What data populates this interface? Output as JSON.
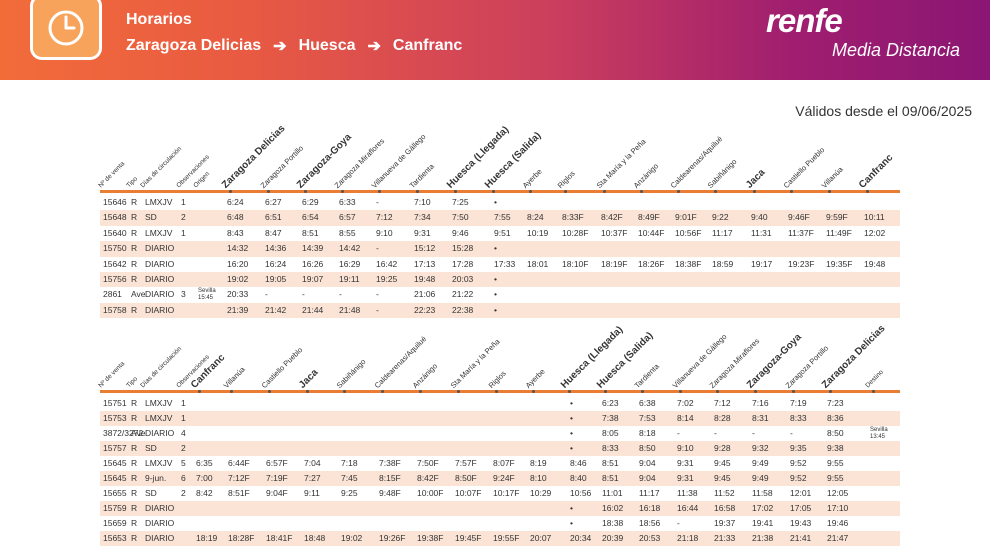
{
  "header": {
    "title": "Horarios",
    "route": [
      "Zaragoza Delicias",
      "Huesca",
      "Canfranc"
    ],
    "brand": "renfe",
    "brand_sub": "Media Distancia",
    "valid_from": "Válidos desde el 09/06/2025"
  },
  "colors": {
    "orange": "#e87d33",
    "shaded": "#fbe4d6",
    "accent": "#f7a35b"
  },
  "icons": {
    "clock": "clock-icon",
    "arrow": "arrow-right-icon"
  },
  "table1": {
    "columns": [
      "Nº de venta",
      "Tipo",
      "Días de circulación",
      "Observaciones",
      "Origen",
      "Zaragoza Delicias",
      "Zaragoza Portillo",
      "Zaragoza-Goya",
      "Zaragoza Miraflores",
      "Villanueva de Gállego",
      "Tardienta",
      "Huesca (Llegada)",
      "Huesca (Salida)",
      "Ayerbe",
      "Riglos",
      "Sta María y la Peña",
      "Anzánigo",
      "Caldearenas/Aquilué",
      "Sabiñánigo",
      "Jaca",
      "Castiello Pueblo",
      "Villanúa",
      "Canfranc"
    ],
    "rows": [
      [
        "15646",
        "R",
        "LMXJV",
        "1",
        "",
        "6:24",
        "6:27",
        "6:29",
        "6:33",
        "-",
        "7:10",
        "7:25",
        "•",
        "",
        "",
        "",
        "",
        "",
        "",
        "",
        "",
        "",
        ""
      ],
      [
        "15648",
        "R",
        "SD",
        "2",
        "",
        "6:48",
        "6:51",
        "6:54",
        "6:57",
        "7:12",
        "7:34",
        "7:50",
        "7:55",
        "8:24",
        "8:33F",
        "8:42F",
        "8:49F",
        "9:01F",
        "9:22",
        "9:40",
        "9:46F",
        "9:59F",
        "10:11"
      ],
      [
        "15640",
        "R",
        "LMXJV",
        "1",
        "",
        "8:43",
        "8:47",
        "8:51",
        "8:55",
        "9:10",
        "9:31",
        "9:46",
        "9:51",
        "10:19",
        "10:28F",
        "10:37F",
        "10:44F",
        "10:56F",
        "11:17",
        "11:31",
        "11:37F",
        "11:49F",
        "12:02"
      ],
      [
        "15750",
        "R",
        "DIARIO",
        "",
        "",
        "14:32",
        "14:36",
        "14:39",
        "14:42",
        "-",
        "15:12",
        "15:28",
        "•",
        "",
        "",
        "",
        "",
        "",
        "",
        "",
        "",
        "",
        ""
      ],
      [
        "15642",
        "R",
        "DIARIO",
        "",
        "",
        "16:20",
        "16:24",
        "16:26",
        "16:29",
        "16:42",
        "17:13",
        "17:28",
        "17:33",
        "18:01",
        "18:10F",
        "18:19F",
        "18:26F",
        "18:38F",
        "18:59",
        "19:17",
        "19:23F",
        "19:35F",
        "19:48"
      ],
      [
        "15756",
        "R",
        "DIARIO",
        "",
        "",
        "19:02",
        "19:05",
        "19:07",
        "19:11",
        "19:25",
        "19:48",
        "20:03",
        "•",
        "",
        "",
        "",
        "",
        "",
        "",
        "",
        "",
        "",
        ""
      ],
      [
        "2861",
        "Ave",
        "DIARIO",
        "3",
        "Sevilla 15:45",
        "20:33",
        "-",
        "-",
        "-",
        "-",
        "21:06",
        "21:22",
        "•",
        "",
        "",
        "",
        "",
        "",
        "",
        "",
        "",
        "",
        ""
      ],
      [
        "15758",
        "R",
        "DIARIO",
        "",
        "",
        "21:39",
        "21:42",
        "21:44",
        "21:48",
        "-",
        "22:23",
        "22:38",
        "•",
        "",
        "",
        "",
        "",
        "",
        "",
        "",
        "",
        "",
        ""
      ]
    ]
  },
  "table2": {
    "columns": [
      "Nº de venta",
      "Tipo",
      "Días de circulación",
      "Observaciones",
      "Canfranc",
      "Villanúa",
      "Castiello Pueblo",
      "Jaca",
      "Sabiñánigo",
      "Caldearenas/Aquilué",
      "Anzánigo",
      "Sta María y la Peña",
      "Riglos",
      "Ayerbe",
      "Huesca (Llegada)",
      "Huesca (Salida)",
      "Tardienta",
      "Villanueva de Gállego",
      "Zaragoza Miraflores",
      "Zaragoza-Goya",
      "Zaragoza Portillo",
      "Zaragoza Delicias",
      "Destino"
    ],
    "rows": [
      [
        "15751",
        "R",
        "LMXJV",
        "1",
        "",
        "",
        "",
        "",
        "",
        "",
        "",
        "",
        "",
        "",
        "•",
        "6:23",
        "6:38",
        "7:02",
        "7:12",
        "7:16",
        "7:19",
        "7:23",
        ""
      ],
      [
        "15753",
        "R",
        "LMXJV",
        "1",
        "",
        "",
        "",
        "",
        "",
        "",
        "",
        "",
        "",
        "",
        "•",
        "7:38",
        "7:53",
        "8:14",
        "8:28",
        "8:31",
        "8:33",
        "8:36",
        ""
      ],
      [
        "3872/3272",
        "Ave",
        "DIARIO",
        "4",
        "",
        "",
        "",
        "",
        "",
        "",
        "",
        "",
        "",
        "",
        "•",
        "8:05",
        "8:18",
        "-",
        "-",
        "-",
        "-",
        "8:50",
        "Sevilla 13:45"
      ],
      [
        "15757",
        "R",
        "SD",
        "2",
        "",
        "",
        "",
        "",
        "",
        "",
        "",
        "",
        "",
        "",
        "•",
        "8:33",
        "8:50",
        "9:10",
        "9:28",
        "9:32",
        "9:35",
        "9:38",
        ""
      ],
      [
        "15645",
        "R",
        "LMXJV",
        "5",
        "6:35",
        "6:44F",
        "6:57F",
        "7:04",
        "7:18",
        "7:38F",
        "7:50F",
        "7:57F",
        "8:07F",
        "8:19",
        "8:46",
        "8:51",
        "9:04",
        "9:31",
        "9:45",
        "9:49",
        "9:52",
        "9:55",
        ""
      ],
      [
        "15645",
        "R",
        "9-jun.",
        "6",
        "7:00",
        "7:12F",
        "7:19F",
        "7:27",
        "7:45",
        "8:15F",
        "8:42F",
        "8:50F",
        "9:24F",
        "8:10",
        "8:40",
        "8:51",
        "9:04",
        "9:31",
        "9:45",
        "9:49",
        "9:52",
        "9:55",
        ""
      ],
      [
        "15655",
        "R",
        "SD",
        "2",
        "8:42",
        "8:51F",
        "9:04F",
        "9:11",
        "9:25",
        "9:48F",
        "10:00F",
        "10:07F",
        "10:17F",
        "10:29",
        "10:56",
        "11:01",
        "11:17",
        "11:38",
        "11:52",
        "11:58",
        "12:01",
        "12:05",
        ""
      ],
      [
        "15759",
        "R",
        "DIARIO",
        "",
        "",
        "",
        "",
        "",
        "",
        "",
        "",
        "",
        "",
        "",
        "•",
        "16:02",
        "16:18",
        "16:44",
        "16:58",
        "17:02",
        "17:05",
        "17:10",
        ""
      ],
      [
        "15659",
        "R",
        "DIARIO",
        "",
        "",
        "",
        "",
        "",
        "",
        "",
        "",
        "",
        "",
        "",
        "•",
        "18:38",
        "18:56",
        "-",
        "19:37",
        "19:41",
        "19:43",
        "19:46",
        ""
      ],
      [
        "15653",
        "R",
        "DIARIO",
        "",
        "18:19",
        "18:28F",
        "18:41F",
        "18:48",
        "19:02",
        "19:26F",
        "19:38F",
        "19:45F",
        "19:55F",
        "20:07",
        "20:34",
        "20:39",
        "20:53",
        "21:18",
        "21:33",
        "21:38",
        "21:41",
        "21:47",
        ""
      ]
    ]
  }
}
